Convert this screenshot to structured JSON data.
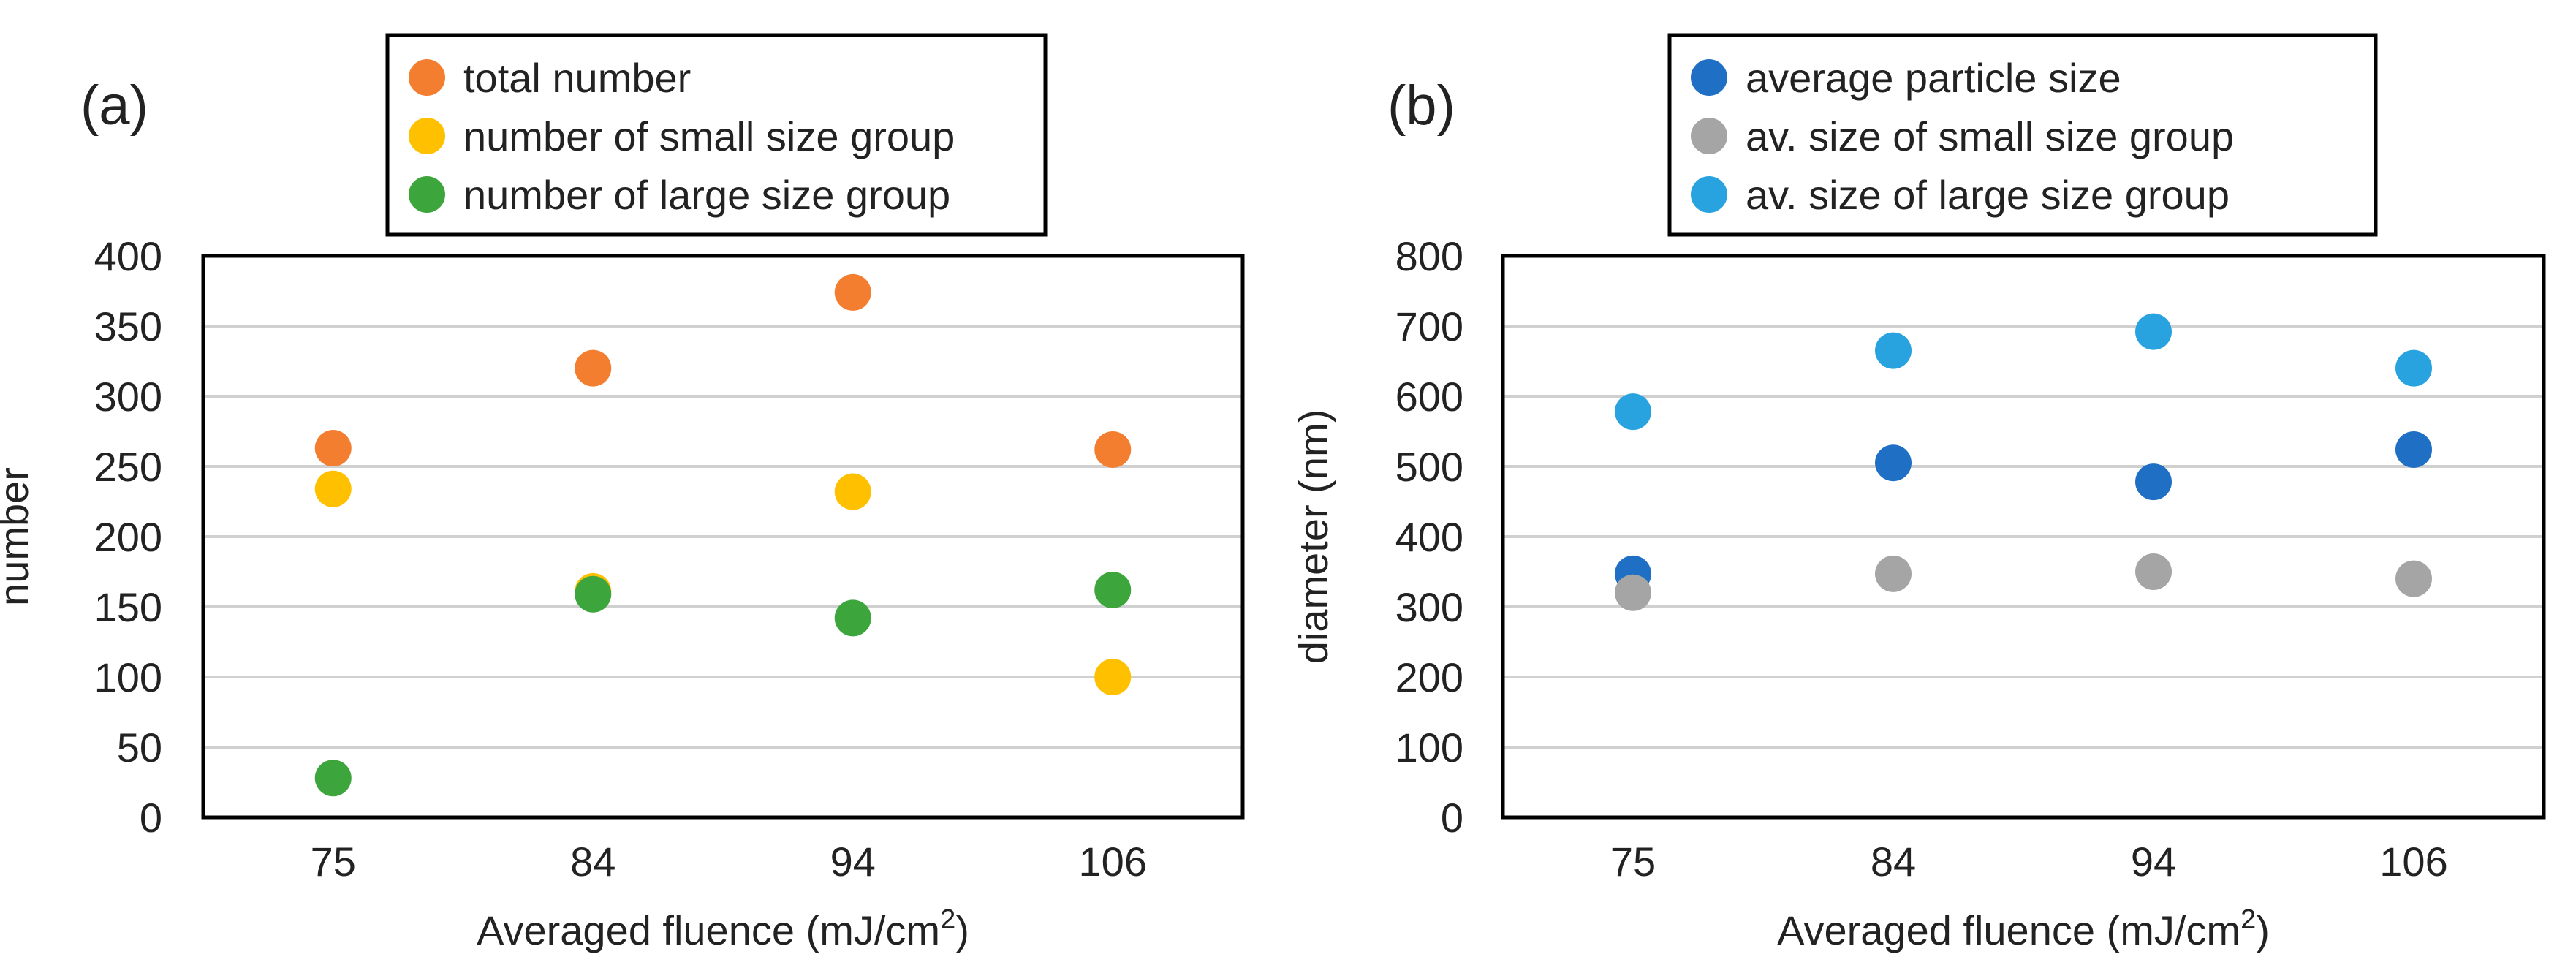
{
  "chart_data": [
    {
      "panel_label": "(a)",
      "type": "scatter",
      "categories": [
        "75",
        "84",
        "94",
        "106"
      ],
      "xlabel": "Averaged fluence (mJ/cm",
      "xlabel_sup": "2",
      "xlabel_suffix": ")",
      "ylabel": "number",
      "ylim": [
        0,
        400
      ],
      "yticks": [
        0,
        50,
        100,
        150,
        200,
        250,
        300,
        350,
        400
      ],
      "grid": true,
      "legend_position": "top-center",
      "series": [
        {
          "name": "total number",
          "color": "#F47E30",
          "values": [
            263,
            320,
            374,
            262
          ]
        },
        {
          "name": "number of small size group",
          "color": "#FFC000",
          "values": [
            234,
            161,
            232,
            100
          ]
        },
        {
          "name": "number of large size group",
          "color": "#3CA63C",
          "values": [
            28,
            159,
            142,
            162
          ]
        }
      ]
    },
    {
      "panel_label": "(b)",
      "type": "scatter",
      "categories": [
        "75",
        "84",
        "94",
        "106"
      ],
      "xlabel": "Averaged fluence (mJ/cm",
      "xlabel_sup": "2",
      "xlabel_suffix": ")",
      "ylabel": "diameter (nm)",
      "ylim": [
        0,
        800
      ],
      "yticks": [
        0,
        100,
        200,
        300,
        400,
        500,
        600,
        700,
        800
      ],
      "grid": true,
      "legend_position": "top-center",
      "series": [
        {
          "name": "average particle size",
          "color": "#1F6FC5",
          "values": [
            347,
            505,
            478,
            524
          ]
        },
        {
          "name": "av. size of small size group",
          "color": "#A5A5A5",
          "values": [
            320,
            347,
            350,
            340
          ]
        },
        {
          "name": "av. size of large size group",
          "color": "#29A3DF",
          "values": [
            578,
            665,
            692,
            640
          ]
        }
      ]
    }
  ]
}
